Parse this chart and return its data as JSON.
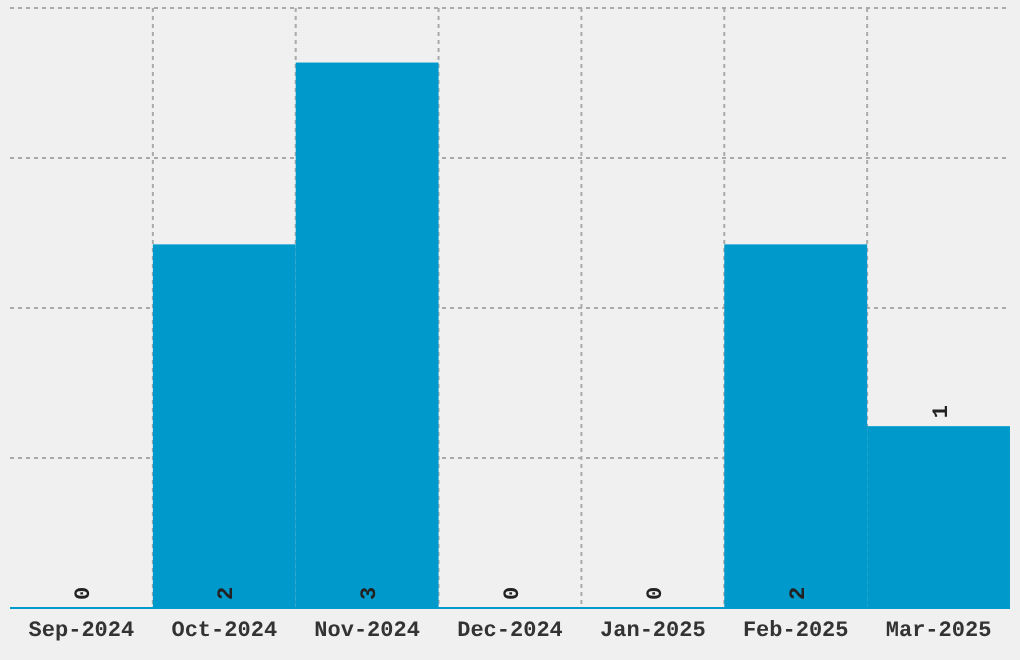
{
  "chart_data": {
    "type": "bar",
    "categories": [
      "Sep-2024",
      "Oct-2024",
      "Nov-2024",
      "Dec-2024",
      "Jan-2025",
      "Feb-2025",
      "Mar-2025"
    ],
    "values": [
      0,
      2,
      3,
      0,
      0,
      2,
      1
    ],
    "color": "#0099cc",
    "data_labels": true,
    "grid": true,
    "tick_labels": "x",
    "ylim": [
      0,
      3.3
    ],
    "yticks": [
      {
        "value": 0,
        "label": null
      },
      {
        "value": 0.825,
        "label": null
      },
      {
        "value": 1.65,
        "label": null
      },
      {
        "value": 2.475,
        "label": null
      },
      {
        "value": 3.3,
        "label": null
      }
    ]
  }
}
